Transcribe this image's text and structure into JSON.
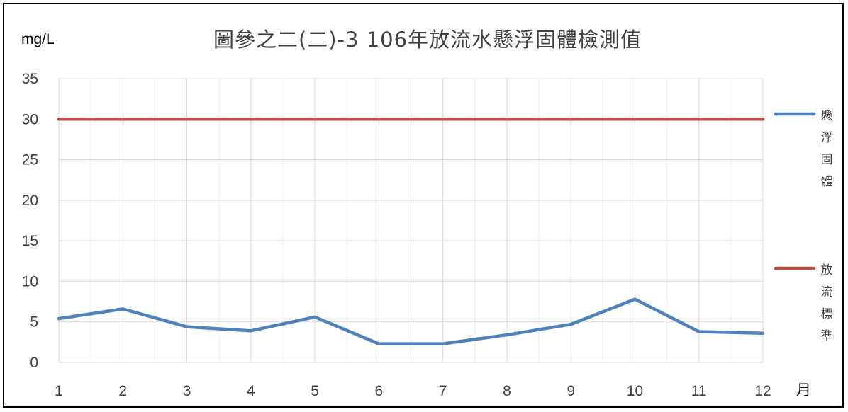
{
  "chart_data": {
    "type": "line",
    "title": "圖參之二(二)-3 106年放流水懸浮固體檢測值",
    "ylabel": "mg/L",
    "xlabel": "月",
    "x": [
      "1",
      "2",
      "3",
      "4",
      "5",
      "6",
      "7",
      "8",
      "9",
      "10",
      "11",
      "12"
    ],
    "yticks": [
      "0",
      "5",
      "10",
      "15",
      "20",
      "25",
      "30",
      "35"
    ],
    "ylim": [
      0,
      35
    ],
    "grid": true,
    "legend_position": "right",
    "series": [
      {
        "name": "懸浮固體",
        "color": "#4f81bd",
        "values": [
          5.4,
          6.6,
          4.4,
          3.9,
          5.6,
          2.3,
          2.3,
          3.4,
          4.7,
          7.8,
          3.8,
          3.6
        ]
      },
      {
        "name": "放流標準",
        "color": "#c0504d",
        "values": [
          30,
          30,
          30,
          30,
          30,
          30,
          30,
          30,
          30,
          30,
          30,
          30
        ]
      }
    ]
  }
}
